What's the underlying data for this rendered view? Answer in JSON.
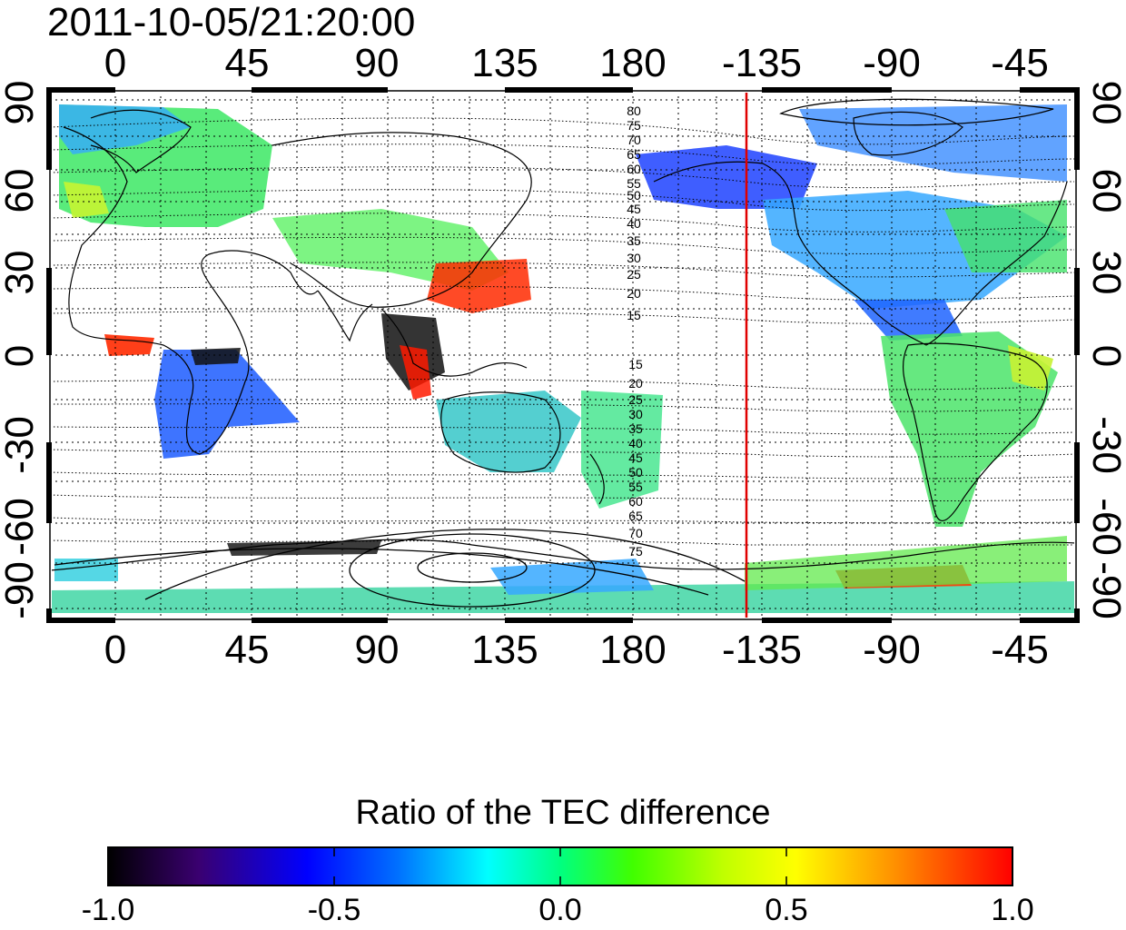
{
  "map": {
    "timestamp": "2011-10-05/21:20:00",
    "longitude_labels": [
      "0",
      "45",
      "90",
      "135",
      "180",
      "-135",
      "-90",
      "-45"
    ],
    "latitude_labels": [
      "90",
      "60",
      "30",
      "0",
      "-30",
      "-60",
      "-90"
    ],
    "contour_labels_north": [
      "80",
      "75",
      "70",
      "65",
      "60",
      "55",
      "50",
      "45",
      "40",
      "35",
      "30",
      "25",
      "20",
      "15"
    ],
    "contour_labels_south": [
      "15",
      "20",
      "25",
      "30",
      "35",
      "40",
      "45",
      "50",
      "55",
      "60",
      "65",
      "70",
      "75"
    ],
    "terminator_color": "#e00000",
    "terminator_longitude": -135
  },
  "colorbar": {
    "title": "Ratio of the TEC difference",
    "ticks": [
      "-1.0",
      "-0.5",
      "0.0",
      "0.5",
      "1.0"
    ],
    "range": [
      -1.0,
      1.0
    ],
    "colors": [
      "#000000",
      "#3a0070",
      "#0000ff",
      "#0070ff",
      "#00ffff",
      "#00ff80",
      "#40ff00",
      "#c0ff00",
      "#ffff00",
      "#ff9000",
      "#ff0000"
    ]
  }
}
